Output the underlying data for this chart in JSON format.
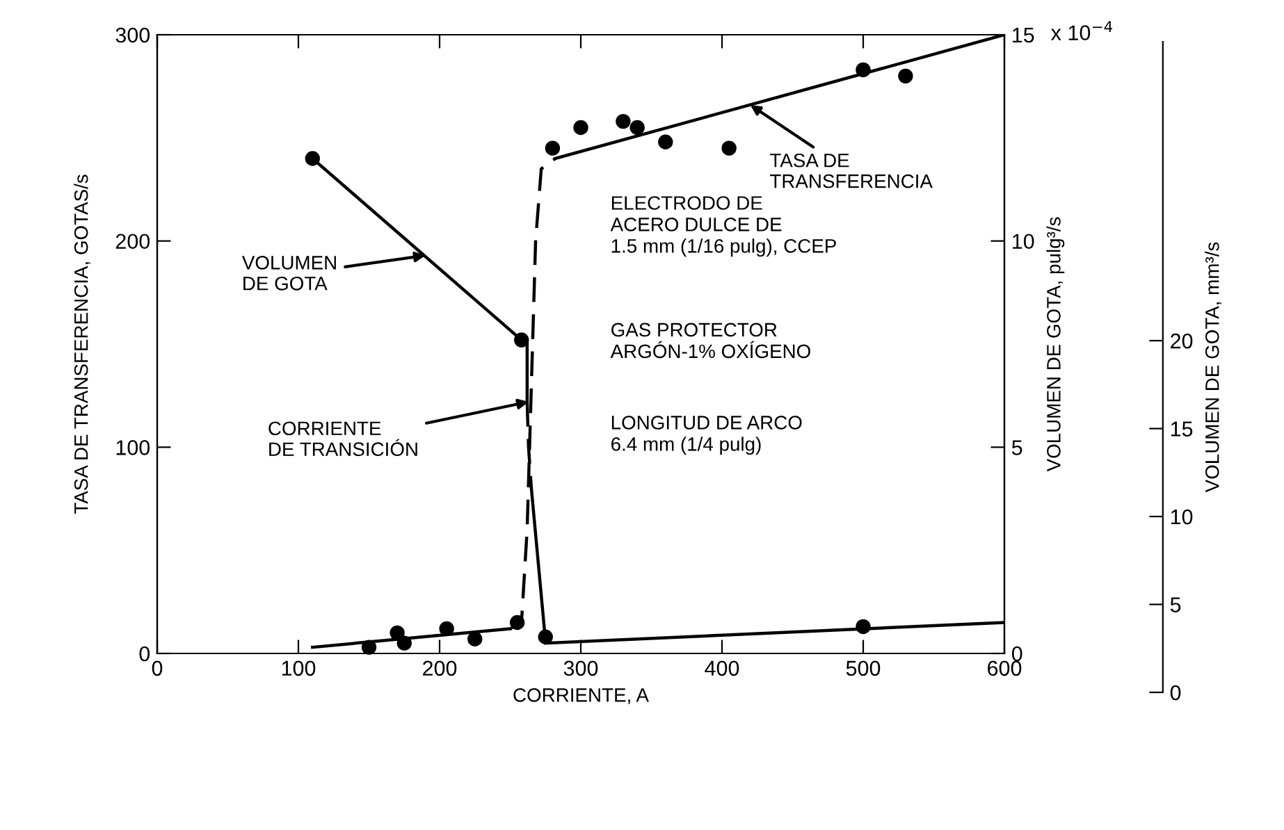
{
  "chart_data": {
    "type": "line",
    "xlabel": "CORRIENTE, A",
    "ylabel": "TASA DE TRANSFERENCIA, GOTAS/s",
    "y2label": "VOLUMEN DE GOTA, pulg³/s",
    "y3label": "VOLUMEN DE GOTA, mm³/s",
    "xlim": [
      0,
      600
    ],
    "xticks": [
      0,
      100,
      200,
      300,
      400,
      500,
      600
    ],
    "ylim": [
      0,
      300
    ],
    "yticks": [
      0,
      100,
      200,
      300
    ],
    "y2lim": [
      0,
      15
    ],
    "y2ticks": [
      0,
      5,
      10,
      15
    ],
    "y3lim": [
      0,
      37
    ],
    "y3ticks": [
      0,
      5,
      10,
      15,
      20
    ],
    "grid": false,
    "series": [
      {
        "type": "scatter",
        "color": "#000000",
        "marker": "circle",
        "x": [
          150,
          170,
          175,
          205,
          225,
          255,
          275,
          280,
          300,
          330,
          340,
          360,
          405,
          500,
          530,
          500
        ],
        "values": [
          3,
          10,
          5,
          12,
          7,
          15,
          8,
          245,
          255,
          258,
          255,
          248,
          245,
          283,
          280,
          13
        ]
      },
      {
        "color": "#000000",
        "line_style": "solid",
        "x": [
          110,
          250
        ],
        "values": [
          3,
          12
        ]
      },
      {
        "color": "#000000",
        "line_style": "dashed",
        "x": [
          250,
          258,
          262,
          265,
          268,
          272,
          282
        ],
        "values": [
          12,
          15,
          60,
          130,
          200,
          235,
          240
        ]
      },
      {
        "color": "#000000",
        "line_style": "solid",
        "x": [
          282,
          600
        ],
        "values": [
          240,
          300
        ]
      },
      {
        "color": "#000000",
        "line_style": "solid",
        "x": [
          275,
          600
        ],
        "values": [
          5,
          15
        ]
      },
      {
        "type": "scatter",
        "axis": "y2",
        "color": "#000000",
        "marker": "circle",
        "x": [
          110,
          258
        ],
        "values": [
          12.0,
          7.6
        ]
      },
      {
        "axis": "y2",
        "color": "#000000",
        "line_style": "solid",
        "x": [
          110,
          258,
          262,
          262
        ],
        "values": [
          12.0,
          7.6,
          7.6,
          6.1
        ]
      },
      {
        "axis": "y2",
        "color": "#000000",
        "line_style": "dashed",
        "x": [
          262,
          263,
          265
        ],
        "values": [
          6.1,
          5.0,
          4.0
        ]
      },
      {
        "axis": "y2",
        "color": "#000000",
        "line_style": "solid",
        "x": [
          265,
          275
        ],
        "values": [
          4.0,
          0.3
        ]
      }
    ],
    "annotations": [
      {
        "text": "VOLUMEN\nDE GOTA",
        "x": 190,
        "y": 193
      },
      {
        "text": "CORRIENTE\nDE TRANSICIÓN",
        "x": 263,
        "y": 122
      },
      {
        "text": "TASA DE\nTRANSFERENCIA",
        "x": 420,
        "y": 266
      },
      "ELECTRODO DE\nACERO DULCE DE\n1.5 mm (1/16 pulg), CCEP",
      "GAS PROTECTOR\nARGÓN-1% OXÍGENO",
      "LONGITUD DE ARCO\n6.4 mm (1/4 pulg)",
      "x 10$^{−4}$"
    ]
  }
}
